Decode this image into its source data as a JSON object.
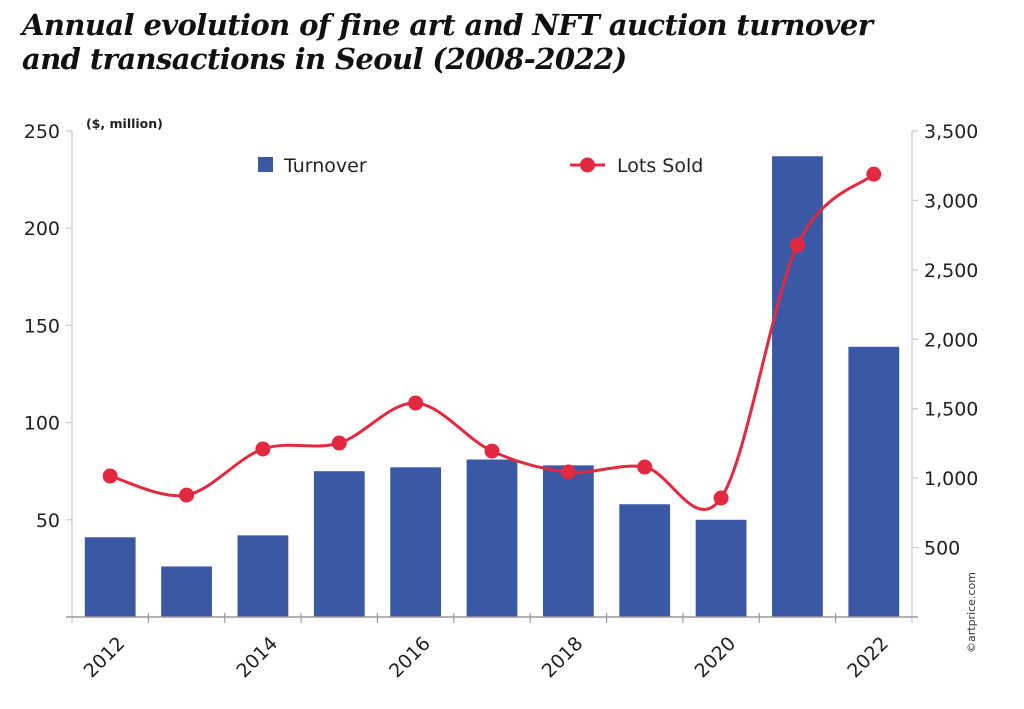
{
  "title": "Annual evolution of fine art and NFT auction turnover and transactions in Seoul (2008-2022)",
  "credit": "©artprice.com",
  "colors": {
    "bar": "#3a58a3",
    "line": "#e3293f",
    "axis": "#c8c8c8",
    "text": "#222222"
  },
  "chart_data": {
    "type": "bar+line",
    "title": "Annual evolution of fine art and NFT auction turnover and transactions in Seoul (2008-2022)",
    "categories": [
      "2012",
      "2013",
      "2014",
      "2015",
      "2016",
      "2017",
      "2018",
      "2019",
      "2020",
      "2021",
      "2022"
    ],
    "x_tick_labels": [
      "2012",
      "",
      "2014",
      "",
      "2016",
      "",
      "2018",
      "",
      "2020",
      "",
      "2022"
    ],
    "series": [
      {
        "name": "Turnover",
        "type": "bar",
        "axis": "left",
        "values": [
          41,
          26,
          42,
          75,
          77,
          81,
          78,
          58,
          50,
          237,
          139
        ]
      },
      {
        "name": "Lots Sold",
        "type": "line",
        "axis": "right",
        "smooth": true,
        "values": [
          1015,
          878,
          1210,
          1253,
          1541,
          1195,
          1044,
          1080,
          857,
          2678,
          3189
        ]
      }
    ],
    "left_axis": {
      "label": "($, million)",
      "range": [
        0,
        250
      ],
      "ticks": [
        50,
        100,
        150,
        200,
        250
      ],
      "tick_labels": [
        "50",
        "100",
        "150",
        "200",
        "250"
      ]
    },
    "right_axis": {
      "label": "",
      "range": [
        0,
        3500
      ],
      "ticks": [
        500,
        1000,
        1500,
        2000,
        2500,
        3000,
        3500
      ],
      "tick_labels": [
        "500",
        "1,000",
        "1,500",
        "2,000",
        "2,500",
        "3,000",
        "3,500"
      ]
    },
    "xlabel": "",
    "grid": false,
    "legend": {
      "placement": "top",
      "entries": [
        "Turnover",
        "Lots Sold"
      ]
    }
  }
}
